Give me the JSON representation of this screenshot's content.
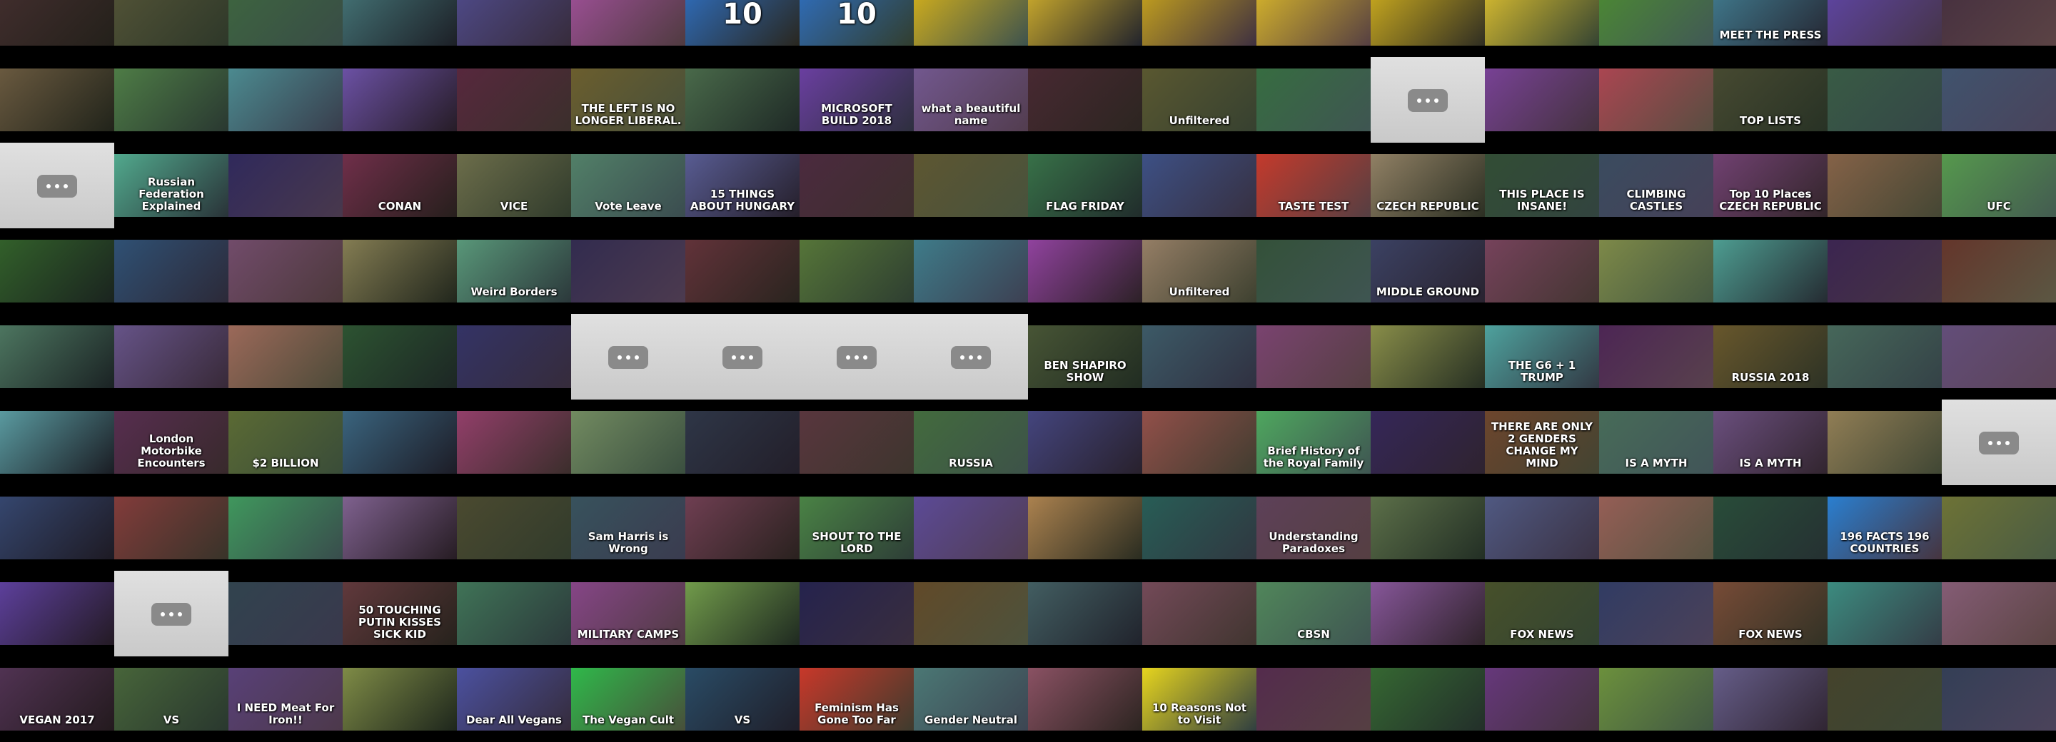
{
  "captions": [
    "10",
    "10",
    "MEET THE PRESS",
    "THE LEFT IS NO LONGER LIBERAL.",
    "MICROSOFT BUILD 2018",
    "what a beautiful name",
    "Unfiltered",
    "TOP LISTS",
    "Russian Federation Explained",
    "CONAN",
    "VICE",
    "Vote Leave",
    "15 THINGS ABOUT HUNGARY",
    "FLAG FRIDAY",
    "TASTE TEST",
    "CZECH REPUBLIC",
    "THIS PLACE IS INSANE!",
    "CLIMBING CASTLES",
    "Top 10 Places CZECH REPUBLIC",
    "UFC",
    "Weird Borders",
    "Unfiltered",
    "MIDDLE GROUND",
    "BEN SHAPIRO SHOW",
    "THE G6 + 1 TRUMP",
    "RUSSIA 2018",
    "London Motorbike Encounters",
    "$2 BILLION",
    "RUSSIA",
    "Brief History of the Royal Family",
    "THERE ARE ONLY 2 GENDERS CHANGE MY MIND",
    "IS A MYTH",
    "IS A MYTH",
    "Sam Harris is Wrong",
    "SHOUT TO THE LORD",
    "Understanding Paradoxes",
    "196 FACTS 196 COUNTRIES",
    "50 TOUCHING PUTIN KISSES SICK KID",
    "MILITARY CAMPS",
    "CBSN",
    "FOX NEWS",
    "FOX NEWS",
    "VEGAN 2017",
    "VS",
    "I NEED Meat For Iron!!",
    "Dear All Vegans",
    "The Vegan Cult",
    "VS",
    "Feminism Has Gone Too Far",
    "Gender Neutral",
    "10 Reasons Not to Visit"
  ]
}
